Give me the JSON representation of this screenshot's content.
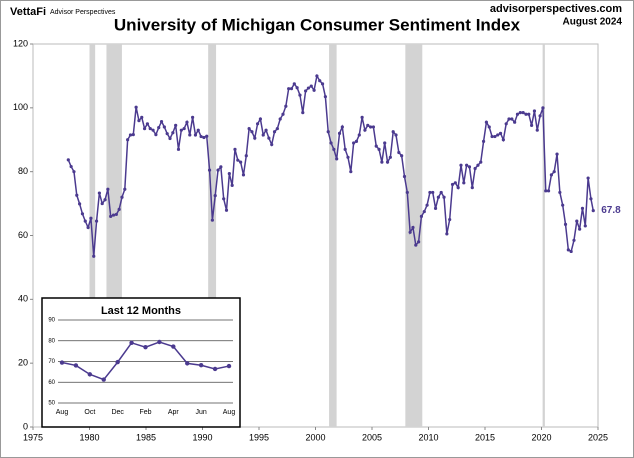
{
  "header": {
    "brand": "VettaFi",
    "brand_sub": "Advisor Perspectives",
    "source": "advisorperspectives.com",
    "date": "August 2024"
  },
  "chart_data": [
    {
      "type": "line",
      "title": "University of Michigan Consumer Sentiment Index",
      "color": "#4b3a8f",
      "recession_color": "#d3d3d3",
      "recessions": [
        [
          1980.0,
          1980.5
        ],
        [
          1981.5,
          1982.87
        ],
        [
          1990.5,
          1991.2
        ],
        [
          2001.2,
          2001.87
        ],
        [
          2007.95,
          2009.45
        ],
        [
          2020.1,
          2020.3
        ]
      ],
      "xlim": [
        1975,
        2025
      ],
      "xticks": [
        1975,
        1980,
        1985,
        1990,
        1995,
        2000,
        2005,
        2010,
        2015,
        2020,
        2025
      ],
      "ylim": [
        0,
        120
      ],
      "yticks": [
        0,
        20,
        40,
        60,
        80,
        100,
        120
      ],
      "grid": false,
      "x": [
        1978.125,
        1978.375,
        1978.625,
        1978.875,
        1979.125,
        1979.375,
        1979.625,
        1979.875,
        1980.125,
        1980.375,
        1980.625,
        1980.875,
        1981.125,
        1981.375,
        1981.625,
        1981.875,
        1982.125,
        1982.375,
        1982.625,
        1982.875,
        1983.125,
        1983.375,
        1983.625,
        1983.875,
        1984.125,
        1984.375,
        1984.625,
        1984.875,
        1985.125,
        1985.375,
        1985.625,
        1985.875,
        1986.125,
        1986.375,
        1986.625,
        1986.875,
        1987.125,
        1987.375,
        1987.625,
        1987.875,
        1988.125,
        1988.375,
        1988.625,
        1988.875,
        1989.125,
        1989.375,
        1989.625,
        1989.875,
        1990.125,
        1990.375,
        1990.625,
        1990.875,
        1991.125,
        1991.375,
        1991.625,
        1991.875,
        1992.125,
        1992.375,
        1992.625,
        1992.875,
        1993.125,
        1993.375,
        1993.625,
        1993.875,
        1994.125,
        1994.375,
        1994.625,
        1994.875,
        1995.125,
        1995.375,
        1995.625,
        1995.875,
        1996.125,
        1996.375,
        1996.625,
        1996.875,
        1997.125,
        1997.375,
        1997.625,
        1997.875,
        1998.125,
        1998.375,
        1998.625,
        1998.875,
        1999.125,
        1999.375,
        1999.625,
        1999.875,
        2000.125,
        2000.375,
        2000.625,
        2000.875,
        2001.125,
        2001.375,
        2001.625,
        2001.875,
        2002.125,
        2002.375,
        2002.625,
        2002.875,
        2003.125,
        2003.375,
        2003.625,
        2003.875,
        2004.125,
        2004.375,
        2004.625,
        2004.875,
        2005.125,
        2005.375,
        2005.625,
        2005.875,
        2006.125,
        2006.375,
        2006.625,
        2006.875,
        2007.125,
        2007.375,
        2007.625,
        2007.875,
        2008.125,
        2008.375,
        2008.625,
        2008.875,
        2009.125,
        2009.375,
        2009.625,
        2009.875,
        2010.125,
        2010.375,
        2010.625,
        2010.875,
        2011.125,
        2011.375,
        2011.625,
        2011.875,
        2012.125,
        2012.375,
        2012.625,
        2012.875,
        2013.125,
        2013.375,
        2013.625,
        2013.875,
        2014.125,
        2014.375,
        2014.625,
        2014.875,
        2015.125,
        2015.375,
        2015.625,
        2015.875,
        2016.125,
        2016.375,
        2016.625,
        2016.875,
        2017.125,
        2017.375,
        2017.625,
        2017.875,
        2018.125,
        2018.375,
        2018.625,
        2018.875,
        2019.125,
        2019.375,
        2019.625,
        2019.875,
        2020.125,
        2020.375,
        2020.625,
        2020.875,
        2021.125,
        2021.375,
        2021.625,
        2021.875,
        2022.125,
        2022.375,
        2022.625,
        2022.875,
        2023.125,
        2023.375,
        2023.625,
        2023.875,
        2024.125,
        2024.375,
        2024.58
      ],
      "values": [
        83.7,
        81.6,
        80.0,
        72.6,
        69.9,
        66.8,
        64.5,
        62.5,
        65.4,
        53.5,
        64.5,
        73.3,
        70.0,
        71.2,
        74.5,
        66.0,
        66.4,
        66.6,
        68.2,
        72.0,
        74.5,
        90.0,
        91.5,
        91.6,
        100.2,
        96.0,
        97.0,
        93.5,
        95.0,
        93.5,
        93.0,
        91.6,
        93.8,
        95.7,
        94.0,
        91.9,
        90.4,
        92.2,
        94.5,
        87.0,
        93.0,
        93.5,
        95.5,
        91.5,
        97.0,
        91.5,
        93.0,
        91.0,
        90.7,
        91.1,
        80.5,
        64.8,
        72.5,
        80.5,
        81.5,
        71.5,
        67.9,
        79.4,
        75.7,
        87.0,
        83.6,
        83.0,
        79.0,
        85.0,
        93.5,
        92.5,
        90.5,
        95.0,
        96.5,
        91.5,
        93.0,
        90.5,
        88.5,
        92.5,
        93.5,
        96.5,
        98.0,
        100.5,
        106.0,
        106.0,
        107.5,
        106.3,
        104.0,
        98.5,
        105.3,
        106.2,
        106.8,
        105.5,
        110.0,
        108.5,
        107.5,
        103.5,
        92.5,
        89.0,
        87.0,
        84.0,
        92.0,
        94.0,
        87.0,
        84.5,
        80.0,
        89.0,
        89.5,
        91.5,
        97.0,
        93.0,
        94.5,
        94.0,
        94.0,
        88.0,
        87.0,
        83.0,
        89.0,
        83.0,
        84.5,
        92.5,
        91.5,
        86.0,
        85.0,
        78.5,
        73.5,
        61.0,
        62.5,
        57.0,
        58.0,
        66.0,
        67.5,
        69.5,
        73.5,
        73.5,
        68.5,
        72.0,
        73.5,
        72.0,
        60.5,
        65.0,
        76.0,
        76.5,
        75.0,
        82.0,
        76.5,
        82.0,
        81.5,
        75.0,
        81.0,
        82.0,
        83.0,
        89.5,
        95.5,
        94.0,
        91.0,
        91.0,
        91.5,
        92.0,
        90.0,
        95.0,
        96.5,
        96.5,
        95.5,
        98.0,
        98.5,
        98.5,
        98.0,
        98.0,
        94.5,
        99.0,
        93.0,
        97.5,
        100.0,
        74.0,
        74.0,
        79.0,
        80.0,
        85.5,
        73.5,
        69.5,
        63.5,
        55.5,
        55.0,
        58.5,
        64.5,
        62.0,
        68.5,
        63.0,
        78.0,
        71.5,
        67.8
      ]
    },
    {
      "type": "line",
      "title": "Last 12 Months",
      "color": "#4b3a8f",
      "categories": [
        "Aug",
        null,
        "Oct",
        null,
        "Dec",
        null,
        "Feb",
        null,
        "Apr",
        null,
        "Jun",
        null,
        "Aug"
      ],
      "values": [
        69.5,
        68.1,
        63.8,
        61.3,
        69.7,
        79.0,
        76.9,
        79.4,
        77.2,
        69.1,
        68.2,
        66.4,
        67.8
      ],
      "ylim": [
        50,
        90
      ],
      "yticks": [
        50,
        60,
        70,
        80,
        90
      ],
      "grid": true
    }
  ]
}
